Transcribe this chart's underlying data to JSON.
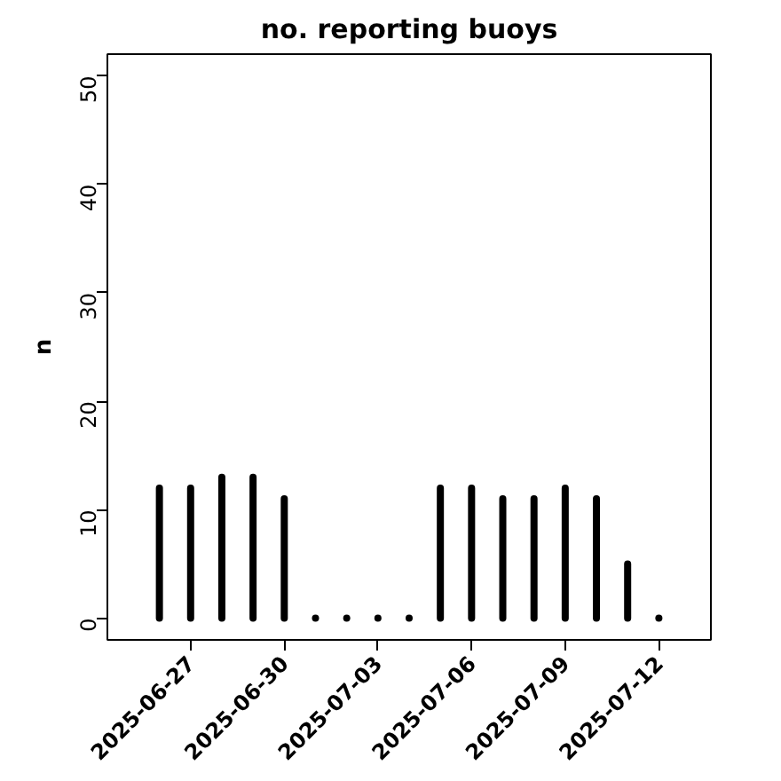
{
  "chart_data": {
    "type": "bar",
    "title": "no. reporting buoys",
    "ylabel": "n",
    "x": [
      "2025-06-26",
      "2025-06-27",
      "2025-06-28",
      "2025-06-29",
      "2025-06-30",
      "2025-07-01",
      "2025-07-02",
      "2025-07-03",
      "2025-07-04",
      "2025-07-05",
      "2025-07-06",
      "2025-07-07",
      "2025-07-08",
      "2025-07-09",
      "2025-07-10",
      "2025-07-11",
      "2025-07-12"
    ],
    "values": [
      12,
      12,
      13,
      13,
      11,
      0,
      0,
      0,
      0,
      12,
      12,
      11,
      11,
      12,
      11,
      5,
      0
    ],
    "color": "#000000",
    "xlim": [
      "2025-06-24T08:00",
      "2025-07-13T16:00"
    ],
    "xticks": [
      {
        "value": "2025-06-27",
        "label": "2025-06-27"
      },
      {
        "value": "2025-06-30",
        "label": "2025-06-30"
      },
      {
        "value": "2025-07-03",
        "label": "2025-07-03"
      },
      {
        "value": "2025-07-06",
        "label": "2025-07-06"
      },
      {
        "value": "2025-07-09",
        "label": "2025-07-09"
      },
      {
        "value": "2025-07-12",
        "label": "2025-07-12"
      }
    ],
    "ylim": [
      -2,
      52
    ],
    "yticks": [
      0,
      10,
      20,
      30,
      40,
      50
    ],
    "grid": false
  }
}
